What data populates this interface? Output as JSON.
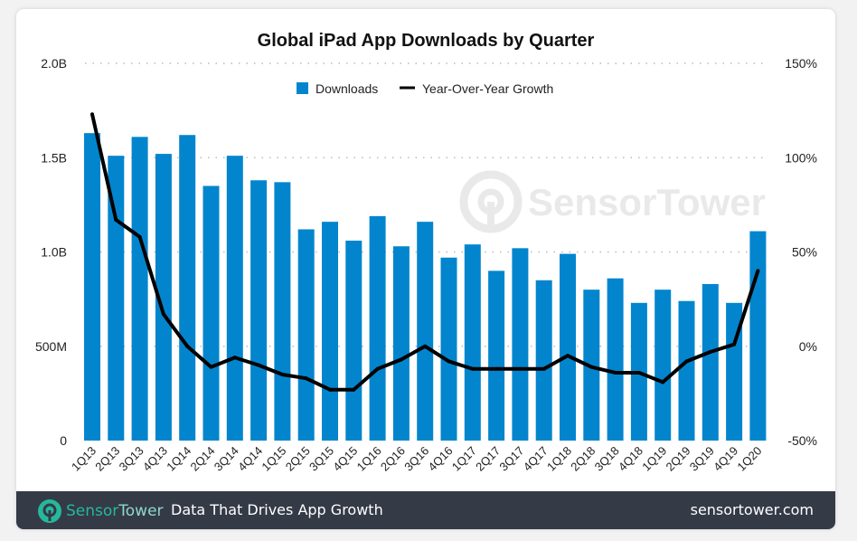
{
  "chart_data": {
    "type": "bar",
    "title": "Global iPad App Downloads by Quarter",
    "categories": [
      "1Q13",
      "2Q13",
      "3Q13",
      "4Q13",
      "1Q14",
      "2Q14",
      "3Q14",
      "4Q14",
      "1Q15",
      "2Q15",
      "3Q15",
      "4Q15",
      "1Q16",
      "2Q16",
      "3Q16",
      "4Q16",
      "1Q17",
      "2Q17",
      "3Q17",
      "4Q17",
      "1Q18",
      "2Q18",
      "3Q18",
      "4Q18",
      "1Q19",
      "2Q19",
      "3Q19",
      "4Q19",
      "1Q20"
    ],
    "series": [
      {
        "name": "Downloads",
        "type": "bar",
        "axis": "left",
        "color": "#0385ce",
        "values": [
          1.63,
          1.51,
          1.61,
          1.52,
          1.62,
          1.35,
          1.51,
          1.38,
          1.37,
          1.12,
          1.16,
          1.06,
          1.19,
          1.03,
          1.16,
          0.97,
          1.04,
          0.9,
          1.02,
          0.85,
          0.99,
          0.8,
          0.86,
          0.73,
          0.8,
          0.74,
          0.83,
          0.73,
          1.11
        ]
      },
      {
        "name": "Year-Over-Year Growth",
        "type": "line",
        "axis": "right",
        "color": "#000000",
        "values": [
          123,
          67,
          58,
          17,
          0,
          -11,
          -6,
          -10,
          -15,
          -17,
          -23,
          -23,
          -12,
          -7,
          0,
          -8,
          -12,
          -12,
          -12,
          -12,
          -5,
          -11,
          -14,
          -14,
          -19,
          -8,
          -3,
          1,
          40
        ]
      }
    ],
    "left_axis": {
      "range": [
        0,
        2.0
      ],
      "unit": "billions",
      "ticks": [
        0,
        0.5,
        1.0,
        1.5,
        2.0
      ],
      "tick_labels": [
        "0",
        "500M",
        "1.0B",
        "1.5B",
        "2.0B"
      ]
    },
    "right_axis": {
      "range": [
        -50,
        150
      ],
      "unit": "percent",
      "ticks": [
        -50,
        0,
        50,
        100,
        150
      ],
      "tick_labels": [
        "-50%",
        "0%",
        "50%",
        "100%",
        "150%"
      ]
    },
    "grid": "horizontal dotted",
    "legend": "top-center",
    "watermark": "SensorTower"
  },
  "footer": {
    "brand_s": "Sensor",
    "brand_t": "Tower",
    "tagline": "Data That Drives App Growth",
    "url": "sensortower.com",
    "color": "#353a47"
  }
}
